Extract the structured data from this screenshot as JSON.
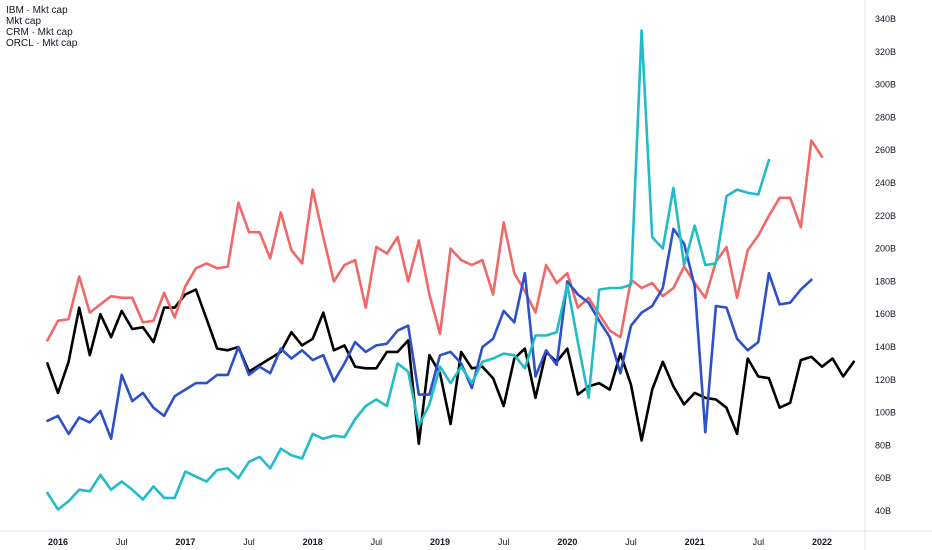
{
  "chart_data": {
    "type": "line",
    "title": "",
    "xlabel": "",
    "ylabel": "",
    "y_unit": "B",
    "ylim": [
      25,
      355
    ],
    "xlim": [
      "2015-12-01",
      "2022-05-01"
    ],
    "grid": false,
    "legend_position": "top-left",
    "legend": [
      "IBM · Mkt cap",
      "Mkt cap",
      "CRM · Mkt cap",
      "ORCL · Mkt cap"
    ],
    "y_ticks": [
      40,
      60,
      80,
      100,
      120,
      140,
      160,
      180,
      200,
      220,
      240,
      260,
      280,
      300,
      320,
      340
    ],
    "y_tick_labels": [
      "40B",
      "60B",
      "80B",
      "100B",
      "120B",
      "140B",
      "160B",
      "180B",
      "200B",
      "220B",
      "240B",
      "260B",
      "280B",
      "300B",
      "320B",
      "340B"
    ],
    "x_ticks": [
      {
        "date": "2016-01-01",
        "label": "2016",
        "year": true
      },
      {
        "date": "2016-07-01",
        "label": "Jul",
        "year": false
      },
      {
        "date": "2017-01-01",
        "label": "2017",
        "year": true
      },
      {
        "date": "2017-07-01",
        "label": "Jul",
        "year": false
      },
      {
        "date": "2018-01-01",
        "label": "2018",
        "year": true
      },
      {
        "date": "2018-07-01",
        "label": "Jul",
        "year": false
      },
      {
        "date": "2019-01-01",
        "label": "2019",
        "year": true
      },
      {
        "date": "2019-07-01",
        "label": "Jul",
        "year": false
      },
      {
        "date": "2020-01-01",
        "label": "2020",
        "year": true
      },
      {
        "date": "2020-07-01",
        "label": "Jul",
        "year": false
      },
      {
        "date": "2021-01-01",
        "label": "2021",
        "year": true
      },
      {
        "date": "2021-07-01",
        "label": "Jul",
        "year": false
      },
      {
        "date": "2022-01-01",
        "label": "2022",
        "year": true
      }
    ],
    "x_start": "2015-12",
    "x_step": "1 month",
    "series": [
      {
        "name": "ORCL · Mkt cap",
        "color": "#000000",
        "values": [
          130,
          112,
          131,
          164,
          135,
          160,
          146,
          162,
          151,
          152,
          143,
          164,
          164,
          172,
          175,
          157,
          139,
          138,
          140,
          125,
          129,
          133,
          137,
          149,
          141,
          145,
          161,
          138,
          141,
          128,
          127,
          127,
          137,
          137,
          144,
          81,
          135,
          124,
          93,
          137,
          127,
          128,
          121,
          104,
          133,
          139,
          109,
          137,
          131,
          139,
          111,
          116,
          118,
          114,
          136,
          117,
          83,
          114,
          131,
          116,
          105,
          112,
          109,
          108,
          103,
          87,
          133,
          122,
          121,
          103,
          106,
          132,
          134,
          128,
          133,
          122,
          131
        ]
      },
      {
        "name": "Mkt cap",
        "color": "#f06868",
        "values": [
          144,
          156,
          157,
          183,
          161,
          166,
          171,
          170,
          170,
          155,
          156,
          173,
          158,
          177,
          188,
          191,
          188,
          189,
          228,
          210,
          210,
          194,
          222,
          199,
          191,
          236,
          207,
          180,
          190,
          193,
          164,
          201,
          197,
          207,
          180,
          205,
          172,
          148,
          200,
          193,
          190,
          193,
          172,
          216,
          185,
          174,
          161,
          190,
          179,
          185,
          164,
          170,
          160,
          150,
          146,
          181,
          176,
          179,
          171,
          176,
          189,
          179,
          170,
          192,
          201,
          170,
          199,
          208,
          220,
          231,
          231,
          213,
          266,
          256
        ]
      },
      {
        "name": "IBM · Mkt cap",
        "color": "#2e50c8",
        "values": [
          95,
          98,
          87,
          97,
          94,
          101,
          84,
          123,
          107,
          112,
          103,
          98,
          110,
          114,
          118,
          118,
          123,
          123,
          140,
          123,
          128,
          124,
          139,
          133,
          138,
          132,
          135,
          119,
          130,
          143,
          137,
          141,
          142,
          150,
          153,
          111,
          111,
          135,
          137,
          130,
          115,
          140,
          145,
          162,
          155,
          185,
          122,
          138,
          129,
          180,
          172,
          167,
          156,
          146,
          124,
          153,
          161,
          165,
          176,
          212,
          203,
          177,
          88,
          165,
          164,
          145,
          138,
          143,
          185,
          166,
          167,
          175,
          181
        ]
      },
      {
        "name": "CRM · Mkt cap",
        "color": "#22bcc8",
        "values": [
          51,
          41,
          46,
          53,
          52,
          62,
          53,
          58,
          53,
          47,
          55,
          48,
          48,
          64,
          61,
          58,
          65,
          66,
          60,
          70,
          73,
          66,
          78,
          74,
          72,
          87,
          84,
          86,
          85,
          96,
          104,
          108,
          104,
          130,
          125,
          92,
          105,
          128,
          118,
          128,
          118,
          131,
          133,
          136,
          135,
          127,
          147,
          147,
          149,
          178,
          143,
          109,
          175,
          176,
          176,
          178,
          333,
          207,
          200,
          237,
          190,
          214,
          190,
          191,
          232,
          236,
          234,
          233,
          254
        ]
      }
    ]
  }
}
